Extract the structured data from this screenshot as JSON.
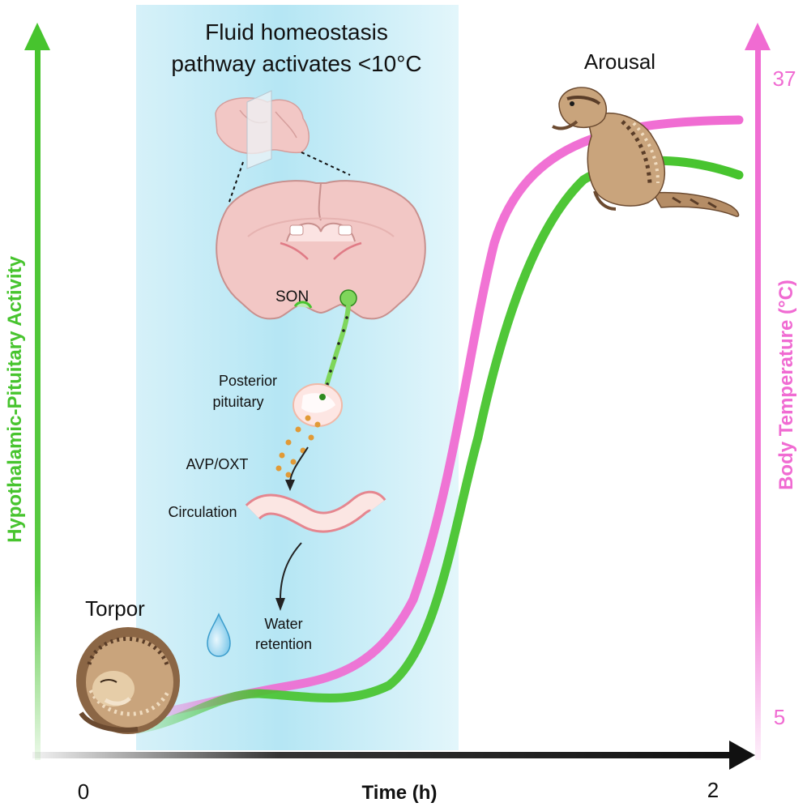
{
  "panel": {
    "title_line1": "Fluid homeostasis",
    "title_line2": "pathway activates <10°C",
    "son_label": "SON",
    "pituitary_line1": "Posterior",
    "pituitary_line2": "pituitary",
    "hormone_label": "AVP/OXT",
    "circulation_label": "Circulation",
    "water_line1": "Water",
    "water_line2": "retention"
  },
  "states": {
    "start": "Torpor",
    "end": "Arousal"
  },
  "axes": {
    "left_label": "Hypothalamic-Pituitary Activity",
    "right_label": "Body Temperature (°C)",
    "right_max": "37",
    "right_min": "5",
    "x_label": "Time (h)",
    "x_min": "0",
    "x_max": "2"
  },
  "colors": {
    "activity": "#47c42e",
    "temperature": "#f06bd2",
    "panel": "#bfe9f5",
    "axis": "#111111"
  },
  "icons": [
    "brain-icon",
    "brain-section-icon",
    "neuron-icon",
    "pituitary-icon",
    "blood-vessel-icon",
    "water-drop-icon",
    "squirrel-curled-icon",
    "squirrel-standing-icon"
  ]
}
